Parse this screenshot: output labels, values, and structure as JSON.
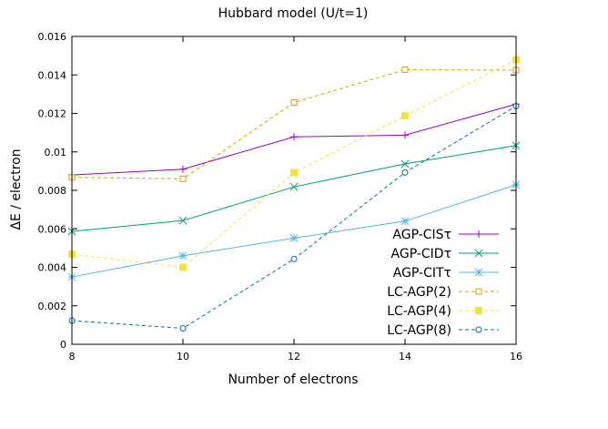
{
  "chart_data": {
    "type": "line",
    "title": "Hubbard model (U/t=1)",
    "xlabel": "Number of electrons",
    "ylabel": "ΔE / electron",
    "x": [
      8,
      10,
      12,
      14,
      16
    ],
    "xticks": [
      "8",
      "10",
      "12",
      "14",
      "16"
    ],
    "yticks": [
      "0",
      "0.002",
      "0.004",
      "0.006",
      "0.008",
      "0.01",
      "0.012",
      "0.014",
      "0.016"
    ],
    "xlim": [
      8,
      16
    ],
    "ylim": [
      0,
      0.016
    ],
    "grid": false,
    "legend_position": "bottom-right",
    "series": [
      {
        "name": "AGP-CISτ",
        "color": "#9400d3",
        "marker": "plus",
        "dash": "none",
        "values": [
          0.0088,
          0.0091,
          0.01078,
          0.01087,
          0.01248
        ]
      },
      {
        "name": "AGP-CIDτ",
        "color": "#009e73",
        "marker": "cross",
        "dash": "none",
        "values": [
          0.00587,
          0.00643,
          0.00818,
          0.00938,
          0.01033
        ]
      },
      {
        "name": "AGP-CITτ",
        "color": "#56b4e9",
        "marker": "star",
        "dash": "none",
        "values": [
          0.0035,
          0.0046,
          0.00552,
          0.0064,
          0.00829
        ]
      },
      {
        "name": "LC-AGP(2)",
        "color": "#e69f00",
        "marker": "square-open",
        "dash": "dashed",
        "values": [
          0.00868,
          0.0086,
          0.01257,
          0.01427,
          0.01425
        ]
      },
      {
        "name": "LC-AGP(4)",
        "color": "#f0e442",
        "marker": "square-filled",
        "dash": "dashed",
        "values": [
          0.00468,
          0.004,
          0.00892,
          0.01188,
          0.01479
        ]
      },
      {
        "name": "LC-AGP(8)",
        "color": "#0072b2",
        "marker": "circle-open",
        "dash": "dashed",
        "values": [
          0.00123,
          0.00083,
          0.00443,
          0.00893,
          0.01238
        ]
      }
    ]
  }
}
